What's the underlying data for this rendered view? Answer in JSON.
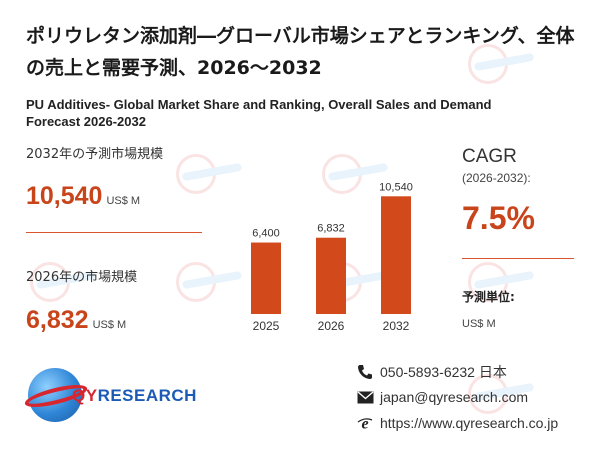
{
  "title_jp": "ポリウレタン添加剤―グローバル市場シェアとランキング、全体の売上と需要予測、2026～2032",
  "title_en": "PU Additives- Global Market Share and Ranking, Overall Sales and Demand Forecast 2026-2032",
  "forecast_2032": {
    "label": "2032年の予測市場規模",
    "value": "10,540",
    "unit": "US$ M"
  },
  "market_2026": {
    "label": "2026年の市場規模",
    "value": "6,832",
    "unit": "US$ M"
  },
  "cagr": {
    "title": "CAGR",
    "period": "(2026-2032):",
    "value": "7.5%"
  },
  "forecast_unit": {
    "label": "予測単位:",
    "value": "US$ M"
  },
  "brand": {
    "q": "QY",
    "rest": "RESEARCH"
  },
  "contact": {
    "phone": "050-5893-6232 日本",
    "email": "japan@qyresearch.com",
    "web": "https://www.qyresearch.co.jp"
  },
  "colors": {
    "accent": "#c8451b",
    "bar": "#d24a1c"
  },
  "chart_data": {
    "type": "bar",
    "categories": [
      "2025",
      "2026",
      "2032"
    ],
    "values": [
      6400,
      6832,
      10540
    ],
    "value_labels": [
      "6,400",
      "6,832",
      "10,540"
    ],
    "title": "",
    "xlabel": "",
    "ylabel": "",
    "ylim": [
      0,
      12000
    ],
    "grid": false,
    "legend": "none"
  }
}
